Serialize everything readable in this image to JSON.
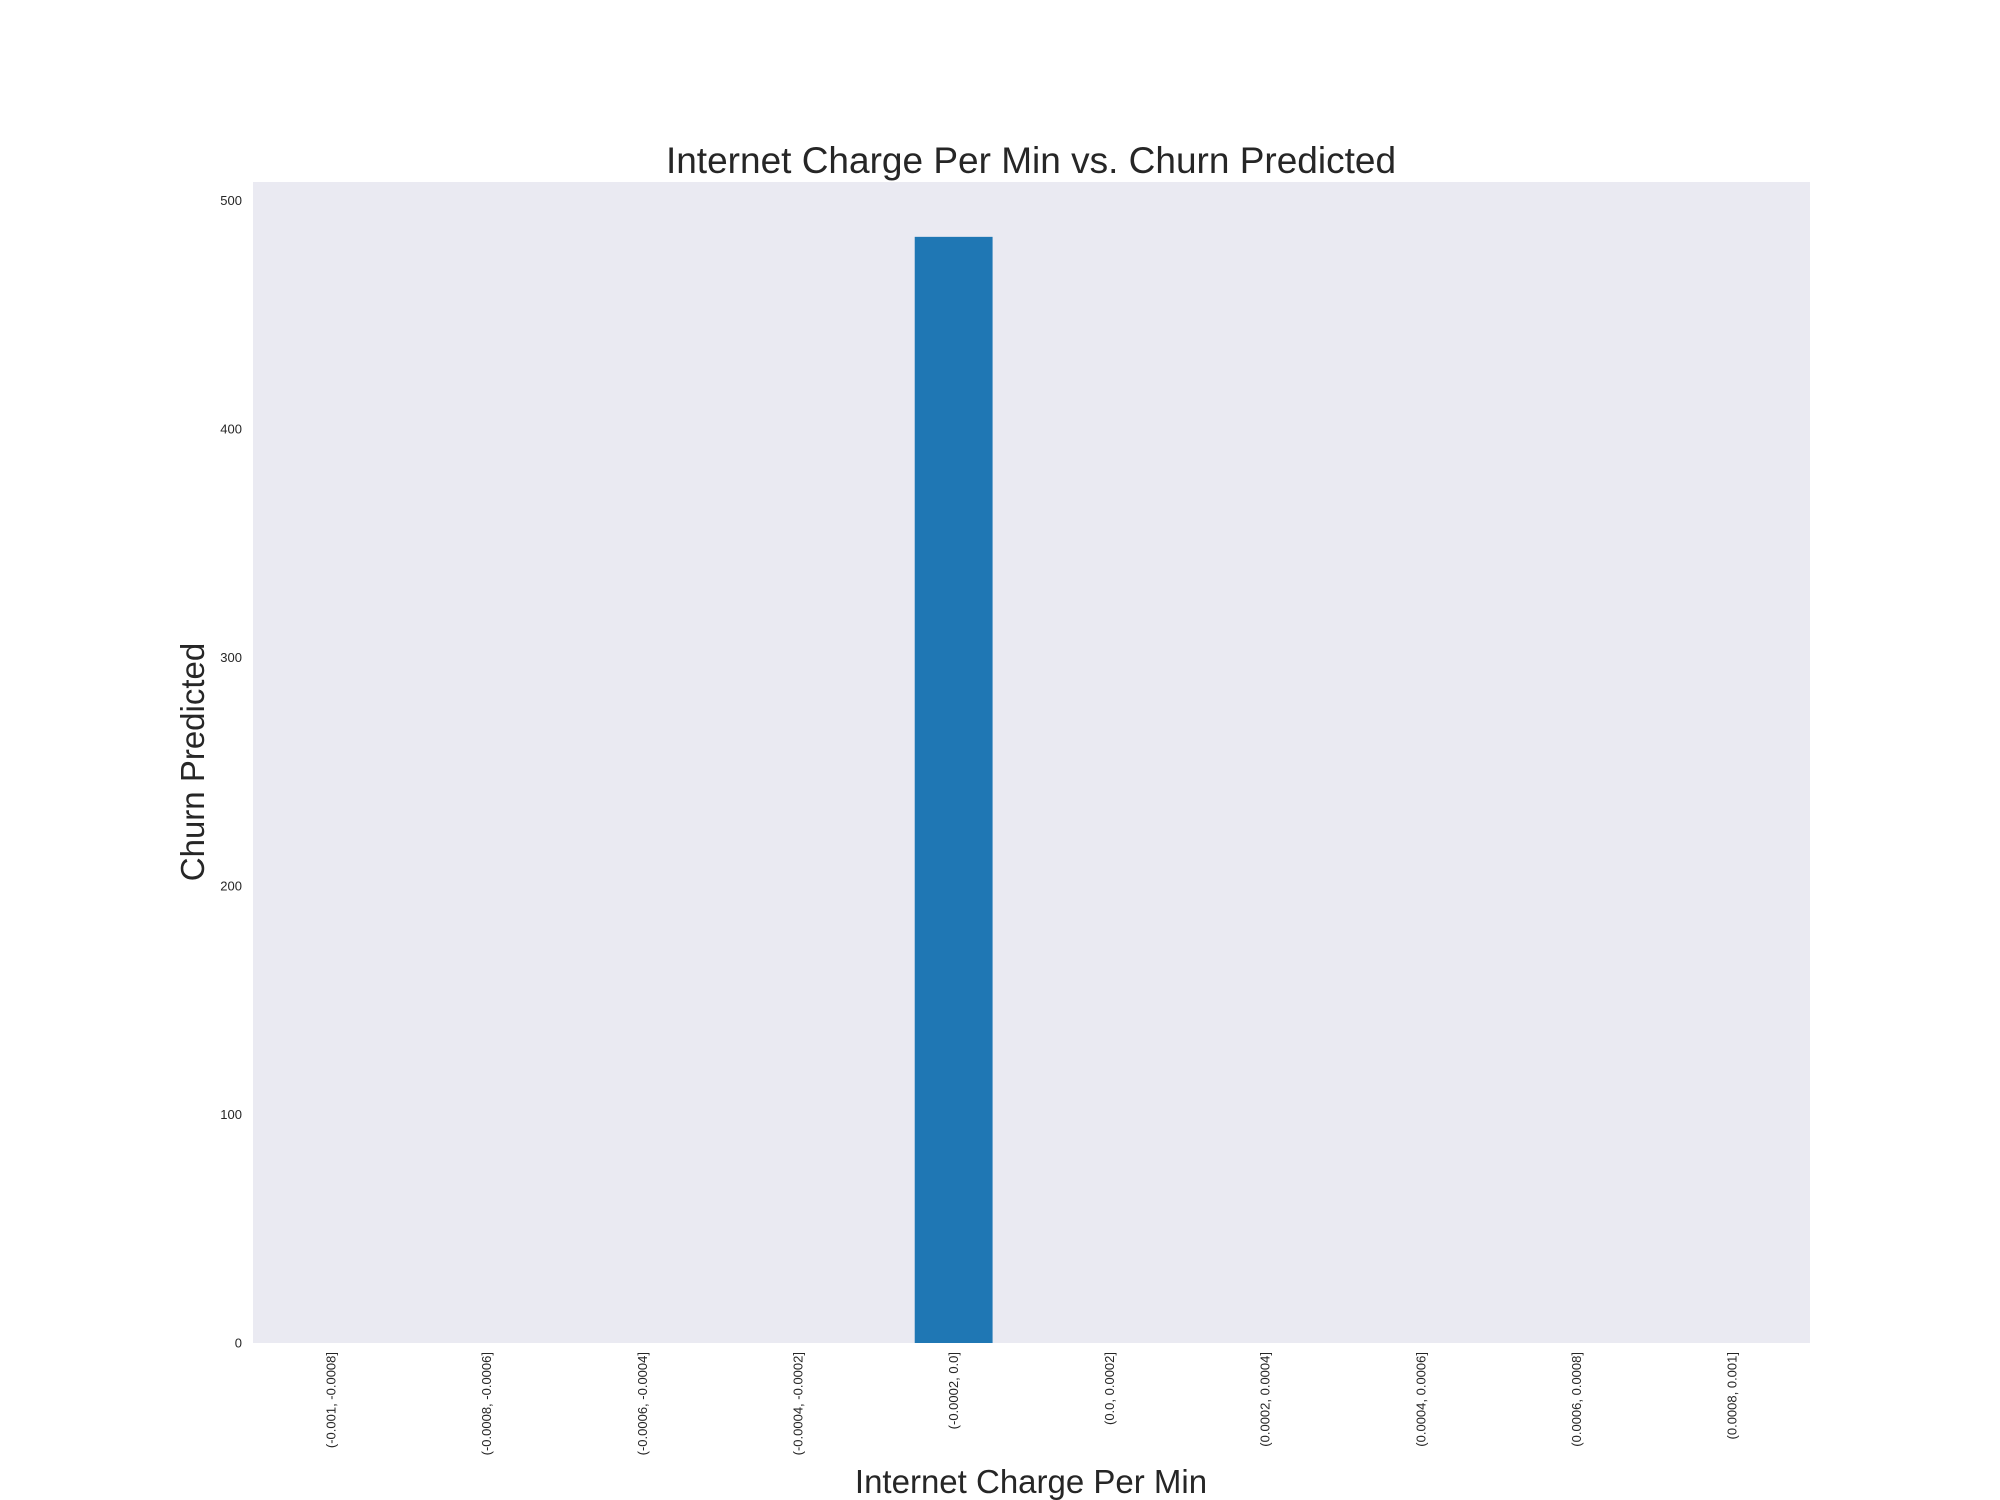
{
  "chart_data": {
    "type": "bar",
    "title": "Internet Charge Per Min vs. Churn Predicted",
    "xlabel": "Internet Charge Per Min",
    "ylabel": "Churn Predicted",
    "categories": [
      "(-0.001, -0.0008]",
      "(-0.0008, -0.0006]",
      "(-0.0006, -0.0004]",
      "(-0.0004, -0.0002]",
      "(-0.0002, 0.0]",
      "(0.0, 0.0002]",
      "(0.0002, 0.0004]",
      "(0.0004, 0.0006]",
      "(0.0006, 0.0008]",
      "(0.0008, 0.001]"
    ],
    "values": [
      0,
      0,
      0,
      0,
      484,
      0,
      0,
      0,
      0,
      0
    ],
    "ylim": [
      0,
      508
    ],
    "yticks": [
      0,
      100,
      200,
      300,
      400,
      500
    ],
    "grid": false,
    "bar_color": "#1f77b4",
    "plot_background": "#eaeaf2"
  }
}
